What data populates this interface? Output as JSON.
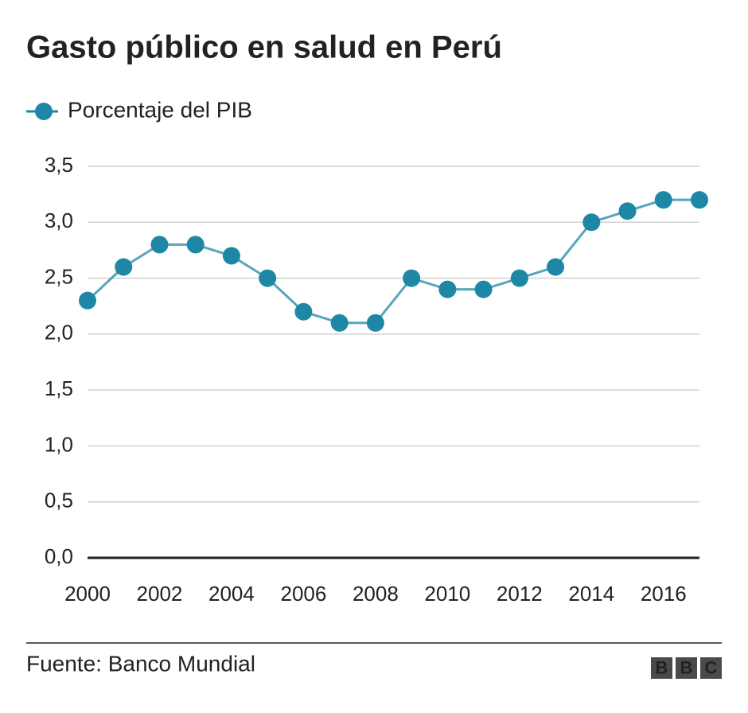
{
  "chart_data": {
    "type": "line",
    "title": "Gasto público en salud en Perú",
    "x": [
      2000,
      2001,
      2002,
      2003,
      2004,
      2005,
      2006,
      2007,
      2008,
      2009,
      2010,
      2011,
      2012,
      2013,
      2014,
      2015,
      2016,
      2017
    ],
    "series": [
      {
        "name": "Porcentaje del PIB",
        "color": "#1e87a5",
        "values": [
          2.3,
          2.6,
          2.8,
          2.8,
          2.7,
          2.5,
          2.2,
          2.1,
          2.1,
          2.5,
          2.4,
          2.4,
          2.5,
          2.6,
          3.0,
          3.1,
          3.2,
          3.2
        ]
      }
    ],
    "xlim": [
      2000,
      2017
    ],
    "xticks": [
      2000,
      2002,
      2004,
      2006,
      2008,
      2010,
      2012,
      2014,
      2016
    ],
    "ylim": [
      0,
      3.5
    ],
    "yticks": [
      {
        "value": 0,
        "label": "0,0"
      },
      {
        "value": 0.5,
        "label": "0,5"
      },
      {
        "value": 1,
        "label": "1,0"
      },
      {
        "value": 1.5,
        "label": "1,5"
      },
      {
        "value": 2,
        "label": "2,0"
      },
      {
        "value": 2.5,
        "label": "2,5"
      },
      {
        "value": 3,
        "label": "3,0"
      },
      {
        "value": 3.5,
        "label": "3,5"
      }
    ],
    "grid": true,
    "legend": "top-left",
    "source": "Fuente: Banco Mundial",
    "logo": [
      "B",
      "B",
      "C"
    ]
  }
}
